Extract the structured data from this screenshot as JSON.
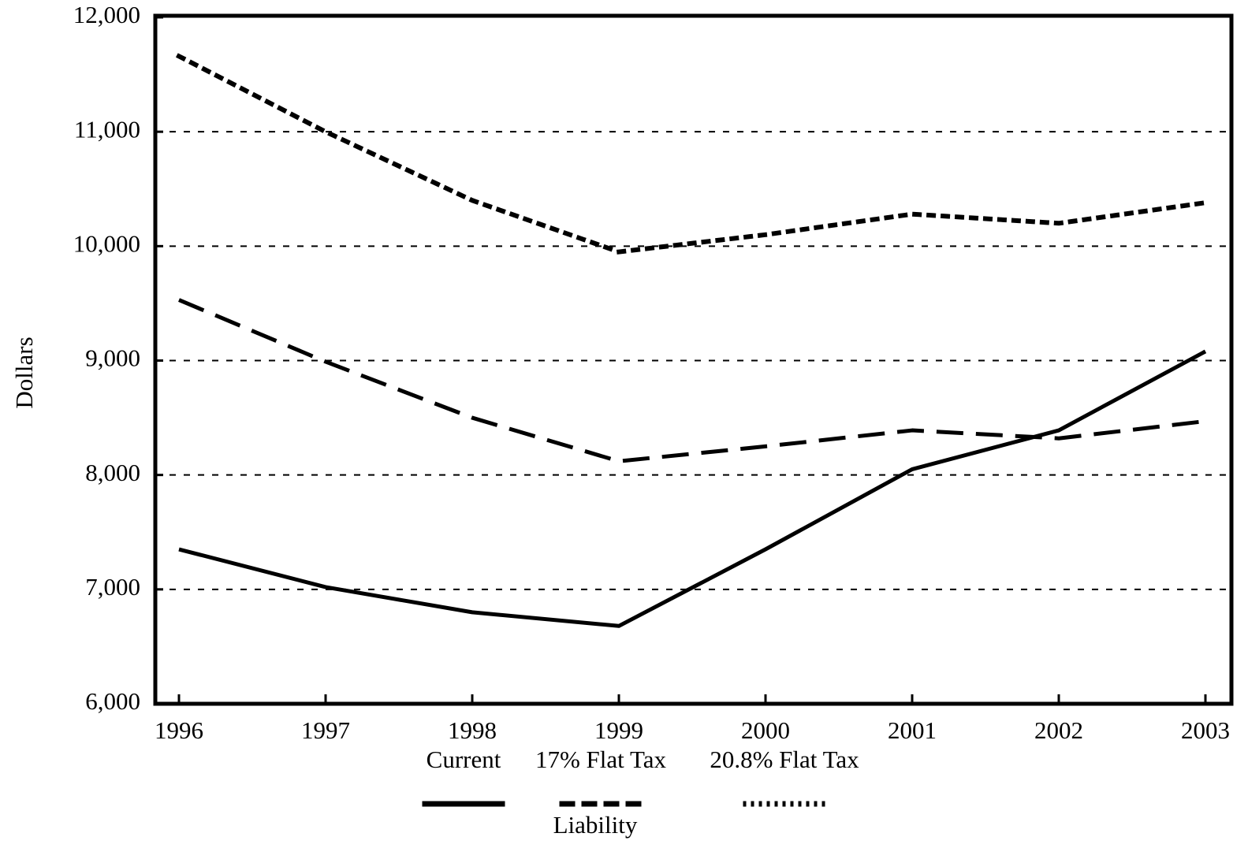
{
  "chart_data": {
    "type": "line",
    "y_label": "Dollars",
    "legend_title": "Liability",
    "categories": [
      "1996",
      "1997",
      "1998",
      "1999",
      "2000",
      "2001",
      "2002",
      "2003"
    ],
    "series": [
      {
        "name": "Current",
        "color": "#000000",
        "dash": "solid",
        "values": [
          7350,
          7020,
          6800,
          6680,
          7350,
          8050,
          8390,
          9080
        ]
      },
      {
        "name": "17% Flat Tax",
        "color": "#000000",
        "dash": "dashed",
        "values": [
          9530,
          8990,
          8500,
          8120,
          8250,
          8390,
          8320,
          8470
        ]
      },
      {
        "name": "20.8% Flat Tax",
        "color": "#000000",
        "dash": "dotted",
        "values": [
          11660,
          11000,
          10400,
          9950,
          10100,
          10280,
          10200,
          10380
        ]
      }
    ],
    "ylim": [
      6000,
      12000
    ],
    "yticks": [
      {
        "value": 6000,
        "label": "6,000"
      },
      {
        "value": 7000,
        "label": "7,000"
      },
      {
        "value": 8000,
        "label": "8,000"
      },
      {
        "value": 9000,
        "label": "9,000"
      },
      {
        "value": 10000,
        "label": "10,000"
      },
      {
        "value": 11000,
        "label": "11,000"
      },
      {
        "value": 12000,
        "label": "12,000"
      }
    ],
    "grid": true,
    "legend": "bottom"
  }
}
